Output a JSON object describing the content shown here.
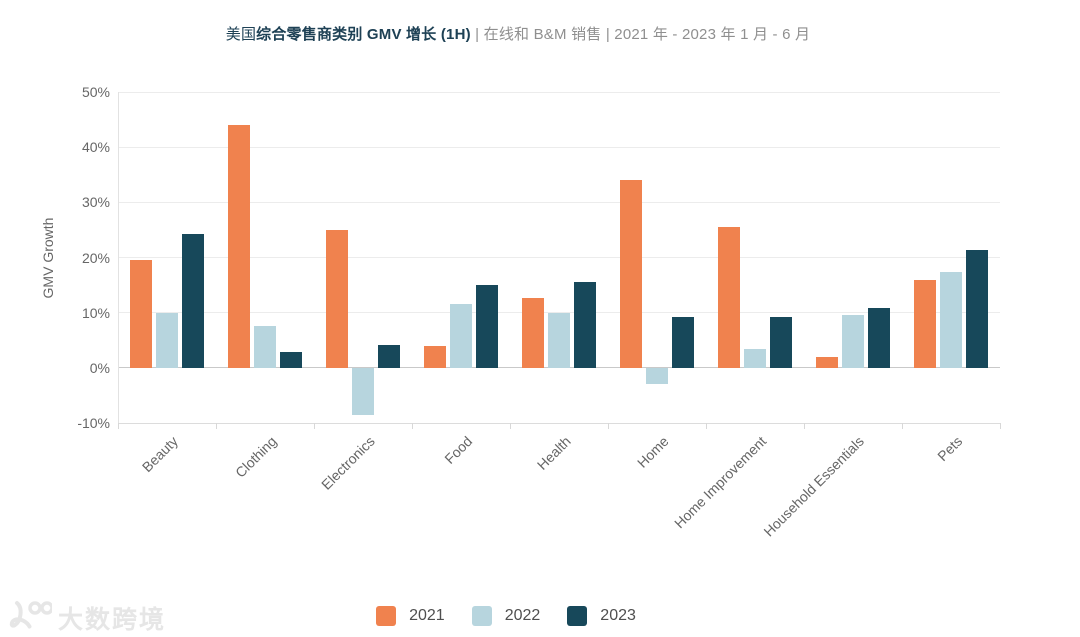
{
  "header": {
    "title_prefix": "美国",
    "title_bold": "综合零售商类别 GMV 增长 (1H)",
    "title_rest": " | 在线和 B&M 销售 | 2021 年 - 2023 年 1 月 - 6 月"
  },
  "watermark": {
    "text": "大数跨境",
    "logo_icon": "100-swirl-logo"
  },
  "chart_data": {
    "type": "bar",
    "title": "美国综合零售商类别 GMV 增长 (1H) | 在线和 B&M 销售 | 2021 年 - 2023 年 1 月 - 6 月",
    "xlabel": "",
    "ylabel": "GMV Growth",
    "ylim": [
      -10,
      50
    ],
    "yticks": [
      50,
      40,
      30,
      20,
      10,
      0,
      -10
    ],
    "ytick_suffix": "%",
    "grid": true,
    "legend_position": "bottom",
    "categories": [
      "Beauty",
      "Clothing",
      "Electronics",
      "Food",
      "Health",
      "Home",
      "Home Improvement",
      "Household Essentials",
      "Pets"
    ],
    "series": [
      {
        "name": "2021",
        "color": "#F0824E",
        "values": [
          19.5,
          44,
          25,
          4,
          12.7,
          34,
          25.5,
          2,
          16
        ]
      },
      {
        "name": "2022",
        "color": "#B7D5DE",
        "values": [
          10,
          7.5,
          -8.5,
          11.5,
          10,
          -3,
          3.5,
          9.5,
          17.3
        ]
      },
      {
        "name": "2023",
        "color": "#17485A",
        "values": [
          24.2,
          2.8,
          4.2,
          15,
          15.5,
          9.2,
          9.2,
          10.8,
          21.4
        ]
      }
    ]
  }
}
